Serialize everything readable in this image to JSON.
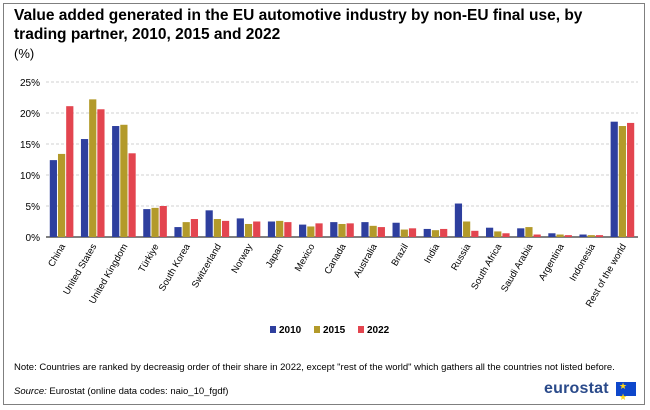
{
  "chart_data": {
    "type": "bar",
    "title": "Value added generated in the EU automotive industry by non-EU final use, by trading partner, 2010, 2015 and 2022",
    "ylabel": "(%)",
    "ylim": [
      0,
      25
    ],
    "yticks": [
      "0%",
      "5%",
      "10%",
      "15%",
      "20%",
      "25%"
    ],
    "grid": true,
    "legend_position": "bottom",
    "categories": [
      "China",
      "United States",
      "United Kingdom",
      "Türkiye",
      "South Korea",
      "Switzerland",
      "Norway",
      "Japan",
      "Mexico",
      "Canada",
      "Australia",
      "Brazil",
      "India",
      "Russia",
      "South Africa",
      "Saudi Arabia",
      "Argentina",
      "Indonesia",
      "Rest of the world"
    ],
    "series": [
      {
        "name": "2010",
        "color": "#2e3f9e",
        "values": [
          12.4,
          15.8,
          17.9,
          4.5,
          1.6,
          4.3,
          3.0,
          2.5,
          2.0,
          2.4,
          2.4,
          2.3,
          1.3,
          5.4,
          1.5,
          1.4,
          0.6,
          0.4,
          18.6
        ]
      },
      {
        "name": "2015",
        "color": "#b39a2a",
        "values": [
          13.4,
          22.2,
          18.1,
          4.7,
          2.4,
          2.9,
          2.1,
          2.6,
          1.7,
          2.1,
          1.8,
          1.2,
          1.1,
          2.5,
          0.9,
          1.6,
          0.4,
          0.3,
          17.9
        ]
      },
      {
        "name": "2022",
        "color": "#e3454f",
        "values": [
          21.1,
          20.6,
          13.5,
          5.0,
          2.9,
          2.6,
          2.5,
          2.4,
          2.2,
          2.2,
          1.6,
          1.4,
          1.3,
          1.0,
          0.6,
          0.4,
          0.3,
          0.3,
          18.4
        ]
      }
    ]
  },
  "header": {
    "title": "Value added generated in the EU automotive industry by non-EU final use, by trading partner, 2010, 2015 and 2022",
    "unit": "(%)"
  },
  "footer": {
    "note": "Note: Countries  are ranked by decreasig order of their share in 2022, except \"rest of the world\" which gathers all the countries  not listed before.",
    "source_label": "Source:",
    "source_text": " Eurostat (online data codes: naio_10_fgdf)",
    "logo": "eurostat"
  },
  "colors": {
    "grid": "#d0d0d0",
    "axis": "#000000"
  }
}
